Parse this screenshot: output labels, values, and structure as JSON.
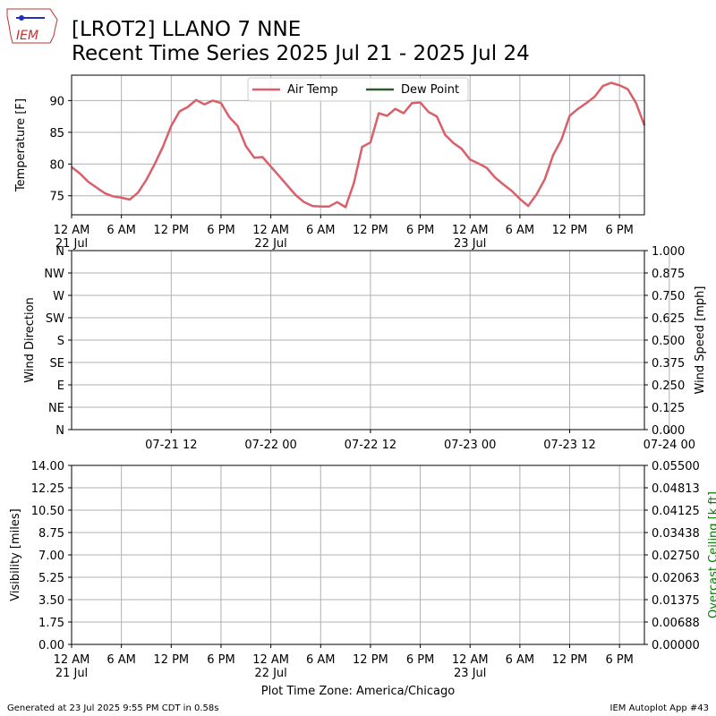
{
  "header": {
    "title_line1": "[LROT2] LLANO 7 NNE",
    "title_line2": "Recent Time Series 2025 Jul 21 - 2025 Jul 24",
    "logo_text": "IEM"
  },
  "footer": {
    "generated": "Generated at 23 Jul 2025 9:55 PM CDT in 0.58s",
    "app": "IEM Autoplot App #43",
    "timezone": "Plot Time Zone: America/Chicago"
  },
  "colors": {
    "air_temp": "#d9606a",
    "dew_point": "#2e5e2e",
    "ceiling_label": "#008000",
    "grid": "#b0b0b0"
  },
  "chart_data": [
    {
      "type": "line",
      "ylabel": "Temperature [F]",
      "ylim": [
        72,
        94
      ],
      "yticks": [
        75,
        80,
        85,
        90
      ],
      "xlim_hours": [
        0,
        69
      ],
      "xtick_labels": [
        "12 AM",
        "6 AM",
        "12 PM",
        "6 PM",
        "12 AM",
        "6 AM",
        "12 PM",
        "6 PM",
        "12 AM",
        "6 AM",
        "12 PM",
        "6 PM"
      ],
      "date_labels": [
        "21 Jul",
        "22 Jul",
        "23 Jul"
      ],
      "legend": [
        "Air Temp",
        "Dew Point"
      ],
      "legend_position": "top-center",
      "grid": true,
      "series": [
        {
          "name": "Air Temp",
          "x": [
            0,
            1,
            2,
            3,
            4,
            5,
            6,
            7,
            8,
            9,
            10,
            11,
            12,
            13,
            14,
            15,
            16,
            17,
            18,
            19,
            20,
            21,
            22,
            23,
            24,
            25,
            26,
            27,
            28,
            29,
            30,
            31,
            32,
            33,
            34,
            35,
            36,
            37,
            38,
            39,
            40,
            41,
            42,
            43,
            44,
            45,
            46,
            47,
            48,
            49,
            50,
            51,
            52,
            53,
            54,
            55,
            56,
            57,
            58,
            59,
            60,
            61,
            62,
            63,
            64,
            65,
            66,
            67,
            68,
            69
          ],
          "y": [
            79.5,
            78.5,
            77.2,
            76.3,
            75.4,
            74.9,
            74.7,
            74.4,
            75.5,
            77.5,
            80,
            82.7,
            86,
            88.3,
            89,
            90.1,
            89.4,
            90,
            89.6,
            87.4,
            86,
            82.8,
            81,
            81.1,
            79.6,
            78.1,
            76.6,
            75.1,
            74,
            73.4,
            73.3,
            73.3,
            74,
            73.2,
            77,
            82.7,
            83.4,
            88,
            87.6,
            88.7,
            88,
            89.6,
            89.7,
            88.2,
            87.5,
            84.6,
            83.3,
            82.4,
            80.7,
            80.1,
            79.4,
            77.9,
            76.8,
            75.8,
            74.5,
            73.4,
            75.2,
            77.6,
            81.4,
            83.8,
            87.6,
            88.7,
            89.6,
            90.6,
            92.3,
            92.8,
            92.4,
            91.8,
            89.6,
            86.1
          ]
        },
        {
          "name": "Dew Point",
          "x": [],
          "y": []
        }
      ]
    },
    {
      "type": "scatter",
      "ylabel": "Wind Direction",
      "ylabel_right": "Wind Speed [mph]",
      "yticks_left": [
        "N",
        "NE",
        "E",
        "SE",
        "S",
        "SW",
        "W",
        "NW",
        "N"
      ],
      "yticks_right": [
        "0.000",
        "0.125",
        "0.250",
        "0.375",
        "0.500",
        "0.625",
        "0.750",
        "0.875",
        "1.000"
      ],
      "xtick_labels": [
        "07-21 12",
        "07-22 00",
        "07-22 12",
        "07-23 00",
        "07-23 12",
        "07-24 00"
      ],
      "grid": true,
      "series": []
    },
    {
      "type": "line",
      "ylabel": "Visibility [miles]",
      "ylabel_right": "Overcast Ceiling [k ft]",
      "yticks_left": [
        "0.00",
        "1.75",
        "3.50",
        "5.25",
        "7.00",
        "8.75",
        "10.50",
        "12.25",
        "14.00"
      ],
      "yticks_right": [
        "0.00000",
        "0.00688",
        "0.01375",
        "0.02063",
        "0.02750",
        "0.03438",
        "0.04125",
        "0.04813",
        "0.05500"
      ],
      "xtick_labels": [
        "12 AM",
        "6 AM",
        "12 PM",
        "6 PM",
        "12 AM",
        "6 AM",
        "12 PM",
        "6 PM",
        "12 AM",
        "6 AM",
        "12 PM",
        "6 PM"
      ],
      "date_labels": [
        "21 Jul",
        "22 Jul",
        "23 Jul"
      ],
      "grid": true,
      "series": []
    }
  ]
}
